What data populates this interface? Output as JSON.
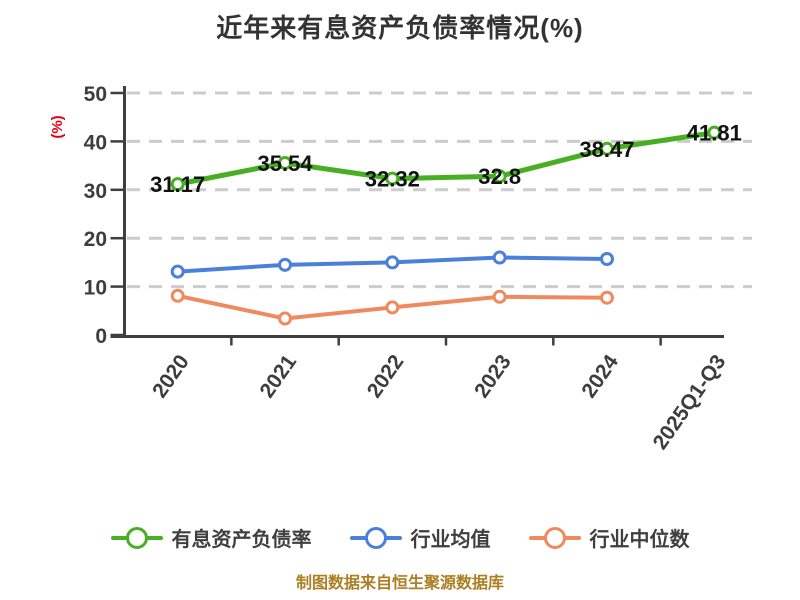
{
  "title": "近年来有息资产负债率情况(%)",
  "footer": "制图数据来自恒生聚源数据库",
  "colors": {
    "grid": "#cccccc",
    "axis": "#3f3f3f",
    "tick_label": "#3d3d3d",
    "title": "#333333",
    "data_label": "#121212",
    "unit_label_red": "#e60012",
    "footer_gold": "#ac7f24",
    "marker_fill": "#ffffff"
  },
  "chart_data": {
    "type": "line",
    "title": "近年来有息资产负债率情况(%)",
    "categories": [
      "2020",
      "2021",
      "2022",
      "2023",
      "2024",
      "2025Q1-Q3"
    ],
    "series": [
      {
        "name": "有息资产负债率",
        "color": "#49af22",
        "values": [
          31.17,
          35.54,
          32.32,
          32.8,
          38.47,
          41.81
        ],
        "point_labels": [
          "31.17",
          "35.54",
          "32.32",
          "32.8",
          "38.47",
          "41.81"
        ],
        "show_labels": true
      },
      {
        "name": "行业均值",
        "color": "#4a80d9",
        "values": [
          13.1,
          14.5,
          15.0,
          16.0,
          15.7,
          null
        ],
        "show_labels": false
      },
      {
        "name": "行业中位数",
        "color": "#ef8a5e",
        "values": [
          8.1,
          3.4,
          5.7,
          7.9,
          7.7,
          null
        ],
        "show_labels": false
      }
    ],
    "ylabel": "(%)",
    "xlabel": "",
    "ylim": [
      0,
      50
    ],
    "yticks": [
      0,
      10,
      20,
      30,
      40,
      50
    ],
    "grid": "dashed-horizontal",
    "legend_position": "bottom",
    "marker": "circle-white-fill"
  }
}
